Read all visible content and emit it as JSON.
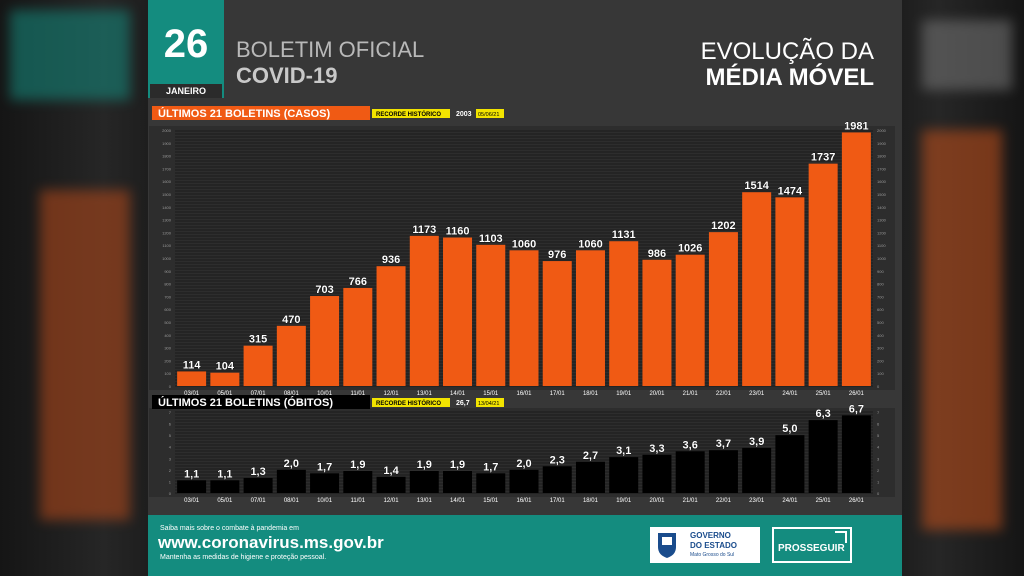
{
  "header": {
    "day": "26",
    "month": "JANEIRO",
    "bulletin_title": "BOLETIM OFICIAL",
    "bulletin_subtitle": "COVID-19",
    "headline_line1": "EVOLUÇÃO DA",
    "headline_line2": "MÉDIA MÓVEL"
  },
  "colors": {
    "panel_bg": "#373737",
    "accent_teal": "#148c7f",
    "bar_orange": "#f05a14",
    "bar_black": "#000000",
    "legend_yellow": "#f2e400"
  },
  "chart_data": [
    {
      "type": "bar",
      "title": "ÚLTIMOS 21 BOLETINS (CASOS)",
      "record_label": "RECORDE HISTÓRICO",
      "record_value": "2003",
      "record_date": "05/06/21",
      "categories": [
        "03/01",
        "05/01",
        "07/01",
        "08/01",
        "10/01",
        "11/01",
        "12/01",
        "13/01",
        "14/01",
        "15/01",
        "16/01",
        "17/01",
        "18/01",
        "19/01",
        "20/01",
        "21/01",
        "22/01",
        "23/01",
        "24/01",
        "25/01",
        "26/01"
      ],
      "values": [
        114,
        104,
        315,
        470,
        703,
        766,
        936,
        1173,
        1160,
        1103,
        1060,
        976,
        1060,
        1131,
        986,
        1026,
        1202,
        1514,
        1474,
        1737,
        1981
      ],
      "value_labels": [
        "114",
        "104",
        "315",
        "470",
        "703",
        "766",
        "936",
        "1173",
        "1160",
        "1103",
        "1060",
        "976",
        "1060",
        "1131",
        "986",
        "1026",
        "1202",
        "1514",
        "1474",
        "1737",
        "1981"
      ],
      "ylim": [
        0,
        2000
      ],
      "y_ticks": [
        "0",
        "100",
        "200",
        "300",
        "400",
        "500",
        "600",
        "700",
        "800",
        "900",
        "1000",
        "1100",
        "1200",
        "1300",
        "1400",
        "1500",
        "1600",
        "1700",
        "1800",
        "1900",
        "2000"
      ],
      "grid": true
    },
    {
      "type": "bar",
      "title": "ÚLTIMOS 21 BOLETINS (ÓBITOS)",
      "record_label": "RECORDE HISTÓRICO",
      "record_value": "26,7",
      "record_date": "13/04/21",
      "categories": [
        "03/01",
        "05/01",
        "07/01",
        "08/01",
        "10/01",
        "11/01",
        "12/01",
        "13/01",
        "14/01",
        "15/01",
        "16/01",
        "17/01",
        "18/01",
        "19/01",
        "20/01",
        "21/01",
        "22/01",
        "23/01",
        "24/01",
        "25/01",
        "26/01"
      ],
      "values": [
        1.1,
        1.1,
        1.3,
        2.0,
        1.7,
        1.9,
        1.4,
        1.9,
        1.9,
        1.7,
        2.0,
        2.3,
        2.7,
        3.1,
        3.3,
        3.6,
        3.7,
        3.9,
        5.0,
        6.3,
        6.7
      ],
      "value_labels": [
        "1,1",
        "1,1",
        "1,3",
        "2,0",
        "1,7",
        "1,9",
        "1,4",
        "1,9",
        "1,9",
        "1,7",
        "2,0",
        "2,3",
        "2,7",
        "3,1",
        "3,3",
        "3,6",
        "3,7",
        "3,9",
        "5,0",
        "6,3",
        "6,7"
      ],
      "ylim": [
        0,
        7
      ],
      "y_ticks": [
        "0",
        "1",
        "2",
        "3",
        "4",
        "5",
        "6",
        "7"
      ],
      "grid": true
    }
  ],
  "footer": {
    "small_line1": "Saiba mais sobre o combate à pandemia em",
    "url": "www.coronavirus.ms.gov.br",
    "small_line2": "Mantenha as medidas de higiene e proteção pessoal.",
    "gov_line1": "GOVERNO",
    "gov_line2": "DO ESTADO",
    "gov_line3": "Mato Grosso do Sul",
    "program_label": "PROSSEGUIR"
  }
}
